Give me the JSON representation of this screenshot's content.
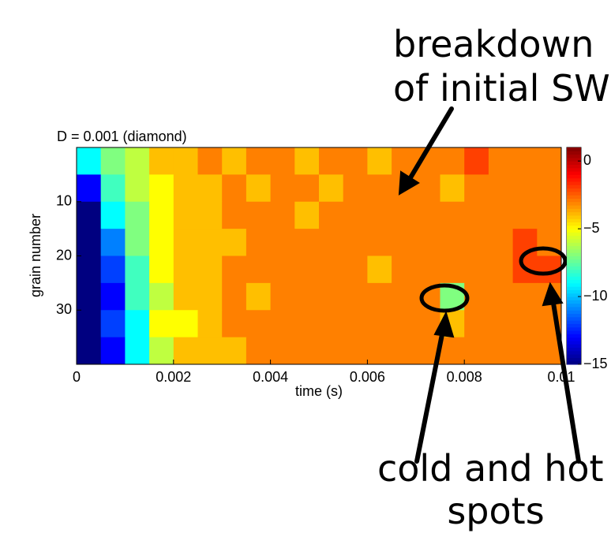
{
  "chart_data": {
    "type": "heatmap",
    "title": "D = 0.001 (diamond)",
    "x_label": "time (s)",
    "y_label": "grain number",
    "x_edges": [
      0,
      0.0005,
      0.001,
      0.0015,
      0.002,
      0.0025,
      0.003,
      0.0035,
      0.004,
      0.0045,
      0.005,
      0.0055,
      0.006,
      0.0065,
      0.007,
      0.0075,
      0.008,
      0.0085,
      0.009,
      0.0095,
      0.01
    ],
    "y_edges": [
      0,
      5,
      10,
      15,
      20,
      25,
      30,
      35,
      40
    ],
    "z": [
      [
        -9,
        -7,
        -6,
        -4,
        -4,
        -3,
        -4,
        -3,
        -3,
        -4,
        -3,
        -3,
        -4,
        -3,
        -3,
        -3,
        -2,
        -3,
        -3,
        -3
      ],
      [
        -13,
        -8,
        -6,
        -5,
        -4,
        -4,
        -3,
        -4,
        -3,
        -3,
        -4,
        -3,
        -3,
        -3,
        -3,
        -4,
        -3,
        -3,
        -3,
        -3
      ],
      [
        -15,
        -9,
        -7,
        -5,
        -4,
        -4,
        -3,
        -3,
        -3,
        -4,
        -3,
        -3,
        -3,
        -3,
        -3,
        -3,
        -3,
        -3,
        -3,
        -3
      ],
      [
        -15,
        -11,
        -7,
        -5,
        -4,
        -4,
        -4,
        -3,
        -3,
        -3,
        -3,
        -3,
        -3,
        -3,
        -3,
        -3,
        -3,
        -3,
        -2,
        -3
      ],
      [
        -15,
        -12,
        -8,
        -5,
        -4,
        -4,
        -3,
        -3,
        -3,
        -3,
        -3,
        -3,
        -4,
        -3,
        -3,
        -3,
        -3,
        -3,
        -2,
        -2
      ],
      [
        -15,
        -13,
        -8,
        -6,
        -4,
        -4,
        -3,
        -4,
        -3,
        -3,
        -3,
        -3,
        -3,
        -3,
        -3,
        -7,
        -3,
        -3,
        -3,
        -3
      ],
      [
        -15,
        -12,
        -9,
        -5,
        -5,
        -4,
        -3,
        -3,
        -3,
        -3,
        -3,
        -3,
        -3,
        -3,
        -3,
        -4,
        -3,
        -3,
        -3,
        -3
      ],
      [
        -15,
        -13,
        -9,
        -6,
        -4,
        -4,
        -4,
        -3,
        -3,
        -3,
        -3,
        -3,
        -3,
        -3,
        -3,
        -3,
        -3,
        -3,
        -3,
        -3
      ]
    ],
    "xlim": [
      0,
      0.01
    ],
    "xticks": [
      0,
      0.002,
      0.004,
      0.006,
      0.008,
      0.01
    ],
    "ylim": [
      0,
      40
    ],
    "y_reversed": true,
    "yticks": [
      10,
      20,
      30
    ],
    "clim": [
      -15,
      1
    ],
    "colormap": "jet",
    "cticks": [
      {
        "value": 0,
        "label": "0"
      },
      {
        "value": -5,
        "label": "−5"
      },
      {
        "value": -10,
        "label": "−10"
      },
      {
        "value": -15,
        "label": "−15"
      }
    ],
    "annotations": [
      "breakdown",
      "of initial SW",
      "cold and hot",
      "spots"
    ]
  }
}
